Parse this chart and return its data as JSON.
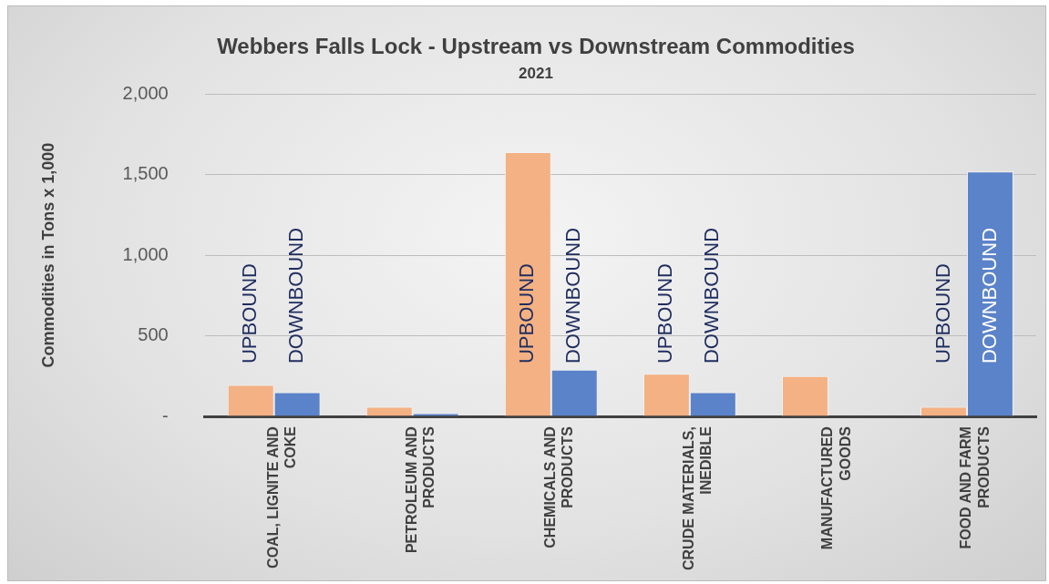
{
  "chart_data": {
    "type": "bar",
    "title": "Webbers Falls Lock - Upstream vs Downstream Commodities",
    "subtitle": "2021",
    "ylabel": "Commodities in Tons x 1,000",
    "categories": [
      "COAL, LIGNITE AND COKE",
      "PETROLEUM AND PRODUCTS",
      "CHEMICALS AND PRODUCTS",
      "CRUDE MATERIALS, INEDIBLE",
      "MANUFACTURED GOODS",
      "FOOD AND FARM PRODUCTS"
    ],
    "series": [
      {
        "name": "UPBOUND",
        "color": "#f4b183",
        "values": [
          195,
          60,
          1640,
          265,
          250,
          60
        ],
        "value_labels": [
          "UPBOUND",
          null,
          null,
          "UPBOUND",
          null,
          "UPBOUND"
        ]
      },
      {
        "name": "DOWNBOUND",
        "color": "#5b83c9",
        "values": [
          150,
          20,
          290,
          150,
          0,
          1520
        ],
        "value_labels": [
          "DOWNBOUND",
          null,
          "DOWNBOUND",
          "DOWNBOUND",
          null,
          null
        ]
      }
    ],
    "ylim": [
      0,
      2000
    ],
    "yticks": [
      {
        "value": 0,
        "label": "-"
      },
      {
        "value": 500,
        "label": "500"
      },
      {
        "value": 1000,
        "label": "1,000"
      },
      {
        "value": 1500,
        "label": "1,500"
      },
      {
        "value": 2000,
        "label": "2,000"
      }
    ],
    "grid": "y",
    "legend": false
  }
}
